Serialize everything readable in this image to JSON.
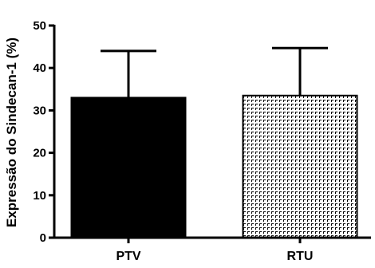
{
  "chart_data": {
    "type": "bar",
    "title": "",
    "xlabel": "",
    "ylabel": "Expressão do Sindecan-1 (%)",
    "categories": [
      "PTV",
      "RTU"
    ],
    "values": [
      33,
      33.5
    ],
    "error_upper": [
      44,
      44.7
    ],
    "ylim": [
      0,
      50
    ],
    "yticks": [
      0,
      10,
      20,
      30,
      40,
      50
    ],
    "grid": false,
    "legend": "none",
    "bar_fills": [
      "solid",
      "crosshatch"
    ],
    "colors": {
      "bar": "#000000",
      "axis": "#000000",
      "background": "#ffffff"
    }
  }
}
